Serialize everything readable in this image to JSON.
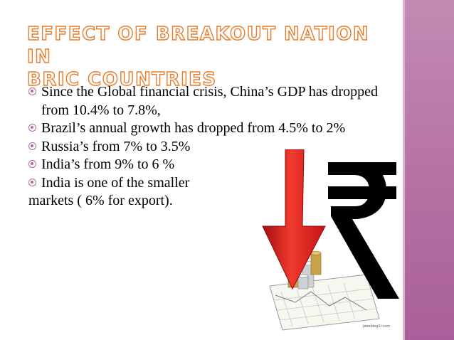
{
  "slide": {
    "title_line1": "Effect of Breakout Nation in",
    "title_line2": "BRIC countries",
    "bullets": [
      "Since the Global financial crisis, China’s GDP has dropped from 10.4% to 7.8%,",
      "Brazil’s annual growth has dropped from 4.5% to 2%",
      "Russia’s from 7% to 3.5%",
      "India’s from 9% to 6 %",
      "India is one of the smaller"
    ],
    "continuation": "markets ( 6% for export).",
    "image_credit": "jeeeblog1l.com",
    "colors": {
      "title_outline": "#e87c2a",
      "bullet_mark": "#b5679d",
      "sidebar": "#b571a2",
      "arrow": "#e01b1b",
      "rupee": "#000000"
    },
    "icons": [
      "down-arrow-icon",
      "rupee-symbol-icon",
      "coin-stack-icon"
    ]
  }
}
